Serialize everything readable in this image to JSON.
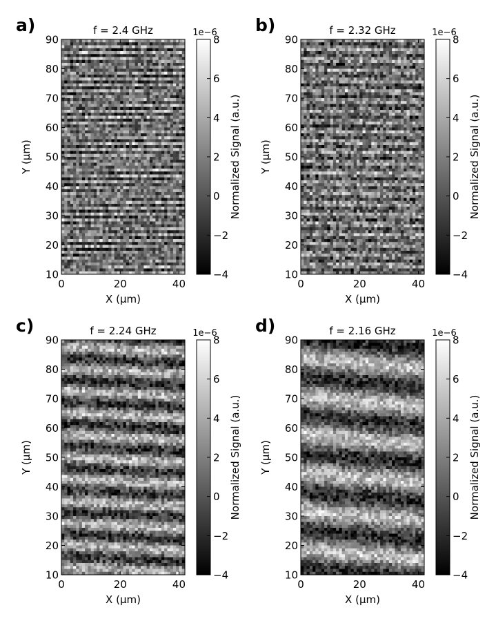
{
  "chart_data": [
    {
      "panel_label": "a)",
      "type": "heatmap",
      "title": "f = 2.4 GHz",
      "xlabel": "X (μm)",
      "ylabel": "Y (μm)",
      "xlim": [
        0,
        42
      ],
      "ylim": [
        10,
        90
      ],
      "xticks": [
        "0",
        "20",
        "40"
      ],
      "yticks": [
        "10",
        "20",
        "30",
        "40",
        "50",
        "60",
        "70",
        "80",
        "90"
      ],
      "grid": false,
      "colormap": "gray",
      "grid_cols": 42,
      "grid_rows": 80,
      "fringe_period_um": 2.2,
      "fringe_amplitude": 0.45,
      "fringe_phase_deg": 20,
      "noise_level": 0.5,
      "colorbar": {
        "label": "Normalized Signal (a.u.)",
        "range": [
          -4,
          8
        ],
        "ticks": [
          "8",
          "6",
          "4",
          "2",
          "0",
          "−2",
          "−4"
        ],
        "offset_text": "1e−6"
      }
    },
    {
      "panel_label": "b)",
      "type": "heatmap",
      "title": "f = 2.32 GHz",
      "xlabel": "X (μm)",
      "ylabel": "Y (μm)",
      "xlim": [
        0,
        42
      ],
      "ylim": [
        10,
        90
      ],
      "xticks": [
        "0",
        "20",
        "40"
      ],
      "yticks": [
        "10",
        "20",
        "30",
        "40",
        "50",
        "60",
        "70",
        "80",
        "90"
      ],
      "grid": false,
      "colormap": "gray",
      "grid_cols": 42,
      "grid_rows": 80,
      "fringe_period_um": 3.5,
      "fringe_amplitude": 0.35,
      "fringe_phase_deg": 60,
      "noise_level": 0.55,
      "colorbar": {
        "label": "Normalized Signal (a.u.)",
        "range": [
          -4,
          8
        ],
        "ticks": [
          "8",
          "6",
          "4",
          "2",
          "0",
          "−2",
          "−4"
        ],
        "offset_text": "1e−6"
      }
    },
    {
      "panel_label": "c)",
      "type": "heatmap",
      "title": "f = 2.24 GHz",
      "xlabel": "X (μm)",
      "ylabel": "Y (μm)",
      "xlim": [
        0,
        42
      ],
      "ylim": [
        10,
        90
      ],
      "xticks": [
        "0",
        "20",
        "40"
      ],
      "yticks": [
        "10",
        "20",
        "30",
        "40",
        "50",
        "60",
        "70",
        "80",
        "90"
      ],
      "grid": false,
      "colormap": "gray",
      "grid_cols": 42,
      "grid_rows": 80,
      "fringe_period_um": 7.5,
      "fringe_amplitude": 0.55,
      "fringe_phase_deg": 110,
      "noise_level": 0.45,
      "colorbar": {
        "label": "Normalized Signal (a.u.)",
        "range": [
          -4,
          8
        ],
        "ticks": [
          "8",
          "6",
          "4",
          "2",
          "0",
          "−2",
          "−4"
        ],
        "offset_text": "1e−6"
      }
    },
    {
      "panel_label": "d)",
      "type": "heatmap",
      "title": "f = 2.16 GHz",
      "xlabel": "X (μm)",
      "ylabel": "Y (μm)",
      "xlim": [
        0,
        42
      ],
      "ylim": [
        10,
        90
      ],
      "xticks": [
        "0",
        "20",
        "40"
      ],
      "yticks": [
        "10",
        "20",
        "30",
        "40",
        "50",
        "60",
        "70",
        "80",
        "90"
      ],
      "grid": false,
      "colormap": "gray",
      "grid_cols": 42,
      "grid_rows": 80,
      "fringe_period_um": 13,
      "fringe_amplitude": 0.6,
      "fringe_phase_deg": 200,
      "noise_level": 0.42,
      "colorbar": {
        "label": "Normalized Signal (a.u.)",
        "range": [
          -4,
          8
        ],
        "ticks": [
          "8",
          "6",
          "4",
          "2",
          "0",
          "−2",
          "−4"
        ],
        "offset_text": "1e−6"
      }
    }
  ]
}
